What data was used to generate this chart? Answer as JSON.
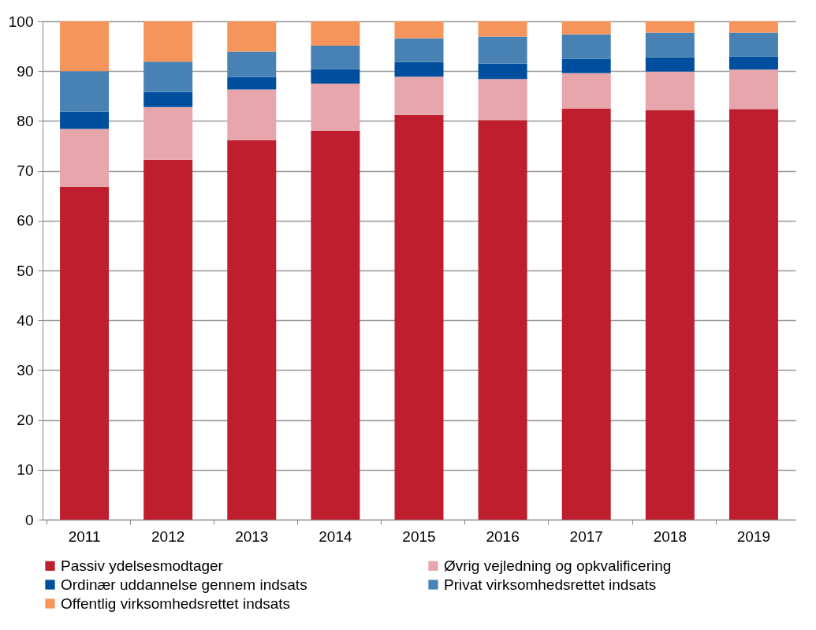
{
  "chart_data": {
    "type": "bar",
    "stacked": true,
    "categories": [
      "2011",
      "2012",
      "2013",
      "2014",
      "2015",
      "2016",
      "2017",
      "2018",
      "2019"
    ],
    "series": [
      {
        "name": "Passiv ydelsesmodtager",
        "color": "#be1e2d",
        "values": [
          66.8,
          72.2,
          76.1,
          78.0,
          81.2,
          80.2,
          82.5,
          82.2,
          82.4
        ]
      },
      {
        "name": "Øvrig vejledning og opkvalificering",
        "color": "#e6a6ac",
        "values": [
          11.6,
          10.6,
          10.2,
          9.5,
          7.7,
          8.2,
          7.1,
          7.7,
          7.9
        ]
      },
      {
        "name": "Ordinær uddannelse gennem indsats",
        "color": "#004f9e",
        "values": [
          3.5,
          3.0,
          2.5,
          2.9,
          2.9,
          3.1,
          2.9,
          2.9,
          2.6
        ]
      },
      {
        "name": "Privat virksomhedsrettet indsats",
        "color": "#4881b4",
        "values": [
          8.1,
          6.1,
          5.1,
          4.7,
          4.8,
          5.4,
          4.9,
          4.9,
          4.8
        ]
      },
      {
        "name": "Offentlig virksomhedsrettet indsats",
        "color": "#f5955c",
        "values": [
          10.0,
          8.1,
          6.1,
          4.9,
          3.4,
          3.1,
          2.6,
          2.3,
          2.3
        ]
      }
    ],
    "ylim": [
      0,
      100
    ],
    "yticks": [
      0,
      10,
      20,
      30,
      40,
      50,
      60,
      70,
      80,
      90,
      100
    ],
    "grid": "y",
    "legend": "bottom"
  }
}
